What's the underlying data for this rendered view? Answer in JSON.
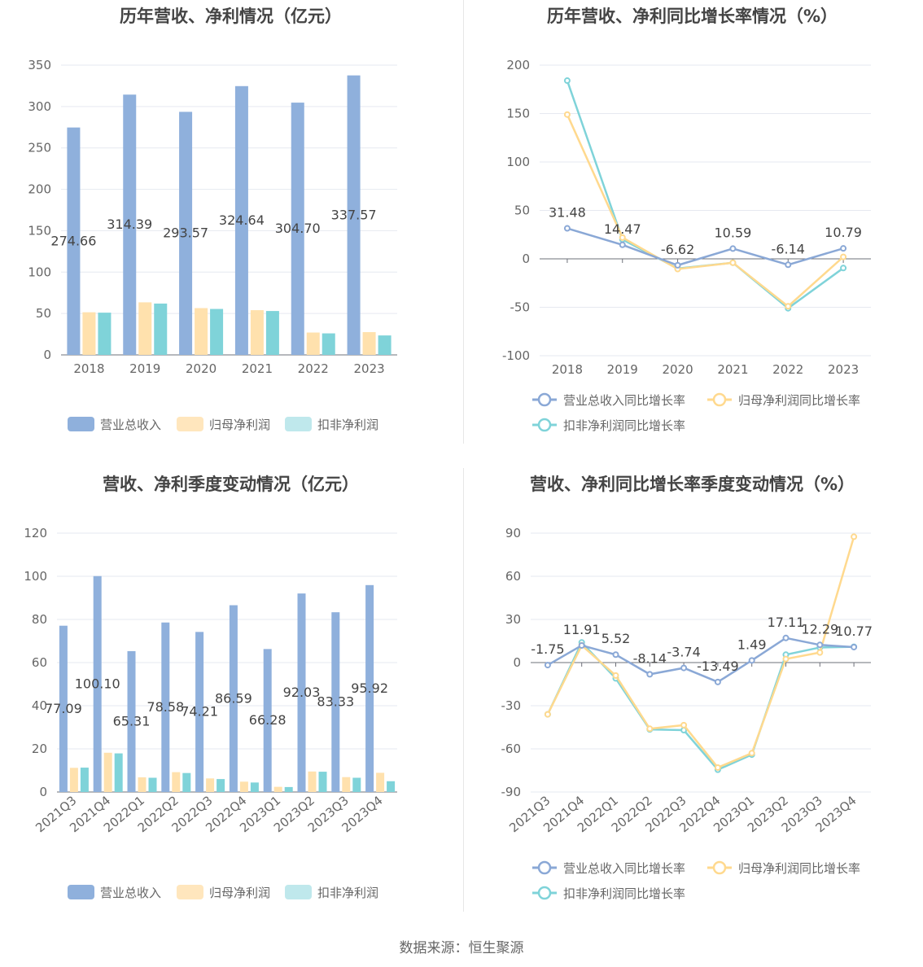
{
  "footer": {
    "source": "数据来源：恒生聚源"
  },
  "colors": {
    "revenue": "#8fb0dc",
    "net_profit": "#ffe1ad",
    "deducted_profit": "#7fd3d9",
    "grid": "#e6e9f0",
    "axis_text": "#666666"
  },
  "chart_data": [
    {
      "type": "bar",
      "title": "历年营收、净利情况（亿元）",
      "categories": [
        "2018",
        "2019",
        "2020",
        "2021",
        "2022",
        "2023"
      ],
      "ylim": [
        0,
        350
      ],
      "yticks": [
        0,
        50,
        100,
        150,
        200,
        250,
        300,
        350
      ],
      "series": [
        {
          "name": "营业总收入",
          "values": [
            274.66,
            314.39,
            293.57,
            324.64,
            304.7,
            337.57
          ],
          "labels": [
            "274.66",
            "314.39",
            "293.57",
            "324.64",
            "304.70",
            "337.57"
          ]
        },
        {
          "name": "归母净利润",
          "values": [
            51.5,
            63.5,
            56.5,
            54.0,
            27.0,
            27.5
          ]
        },
        {
          "name": "扣非净利润",
          "values": [
            51.0,
            62.0,
            55.5,
            53.0,
            26.0,
            23.5
          ]
        }
      ],
      "legend": "bottom",
      "grid": true
    },
    {
      "type": "line",
      "title": "历年营收、净利同比增长率情况（%）",
      "categories": [
        "2018",
        "2019",
        "2020",
        "2021",
        "2022",
        "2023"
      ],
      "ylim": [
        -100,
        200
      ],
      "yticks": [
        -100,
        -50,
        0,
        50,
        100,
        150,
        200
      ],
      "series": [
        {
          "name": "营业总收入同比增长率",
          "values": [
            31.48,
            14.47,
            -6.62,
            10.59,
            -6.14,
            10.79
          ],
          "labels": [
            "31.48",
            "14.47",
            "-6.62",
            "10.59",
            "-6.14",
            "10.79"
          ]
        },
        {
          "name": "归母净利润同比增长率",
          "values": [
            149.0,
            22.0,
            -10.5,
            -4.0,
            -49.0,
            2.0
          ]
        },
        {
          "name": "扣非净利润同比增长率",
          "values": [
            184.0,
            20.0,
            -10.0,
            -4.0,
            -51.0,
            -9.5
          ]
        }
      ],
      "legend": "bottom",
      "grid": true
    },
    {
      "type": "bar",
      "title": "营收、净利季度变动情况（亿元）",
      "categories": [
        "2021Q3",
        "2021Q4",
        "2022Q1",
        "2022Q2",
        "2022Q3",
        "2022Q4",
        "2023Q1",
        "2023Q2",
        "2023Q3",
        "2023Q4"
      ],
      "ylim": [
        0,
        120
      ],
      "yticks": [
        0,
        20,
        40,
        60,
        80,
        100,
        120
      ],
      "series": [
        {
          "name": "营业总收入",
          "values": [
            77.09,
            100.1,
            65.31,
            78.58,
            74.21,
            86.59,
            66.28,
            92.03,
            83.33,
            95.92
          ],
          "labels": [
            "77.09",
            "100.10",
            "65.31",
            "78.58",
            "74.21",
            "86.59",
            "66.28",
            "92.03",
            "83.33",
            "95.92"
          ]
        },
        {
          "name": "归母净利润",
          "values": [
            11.2,
            18.2,
            6.8,
            9.2,
            6.3,
            4.8,
            2.4,
            9.5,
            6.9,
            8.9
          ]
        },
        {
          "name": "扣非净利润",
          "values": [
            11.3,
            17.9,
            6.6,
            8.8,
            6.0,
            4.4,
            2.3,
            9.4,
            6.6,
            5.0
          ]
        }
      ],
      "legend": "bottom",
      "grid": true
    },
    {
      "type": "line",
      "title": "营收、净利同比增长率季度变动情况（%）",
      "categories": [
        "2021Q3",
        "2021Q4",
        "2022Q1",
        "2022Q2",
        "2022Q3",
        "2022Q4",
        "2023Q1",
        "2023Q2",
        "2023Q3",
        "2023Q4"
      ],
      "ylim": [
        -90,
        90
      ],
      "yticks": [
        -90,
        -60,
        -30,
        0,
        30,
        60,
        90
      ],
      "series": [
        {
          "name": "营业总收入同比增长率",
          "values": [
            -1.75,
            11.91,
            5.52,
            -8.14,
            -3.74,
            -13.49,
            1.49,
            17.11,
            12.29,
            10.77
          ],
          "labels": [
            "-1.75",
            "11.91",
            "5.52",
            "-8.14",
            "-3.74",
            "-13.49",
            "1.49",
            "17.11",
            "12.29",
            "10.77"
          ]
        },
        {
          "name": "归母净利润同比增长率",
          "values": [
            -36.0,
            12.0,
            -9.0,
            -46.0,
            -43.5,
            -73.0,
            -63.0,
            2.5,
            7.0,
            87.5
          ]
        },
        {
          "name": "扣非净利润同比增长率",
          "values": [
            -36.0,
            14.0,
            -11.0,
            -46.5,
            -47.0,
            -74.5,
            -64.0,
            5.5,
            10.5,
            11.0
          ]
        }
      ],
      "legend": "bottom",
      "grid": true
    }
  ]
}
